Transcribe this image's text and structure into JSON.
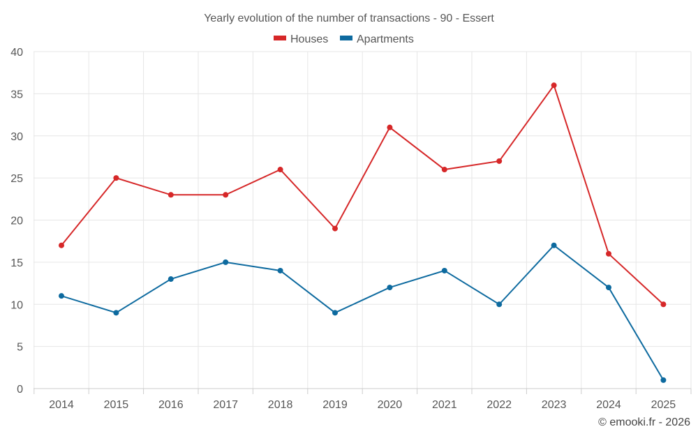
{
  "chart_data": {
    "type": "line",
    "title": "Yearly evolution of the number of transactions - 90 - Essert",
    "categories": [
      "2014",
      "2015",
      "2016",
      "2017",
      "2018",
      "2019",
      "2020",
      "2021",
      "2022",
      "2023",
      "2024",
      "2025"
    ],
    "series": [
      {
        "name": "Houses",
        "color": "#d62728",
        "values": [
          17,
          25,
          23,
          23,
          26,
          19,
          31,
          26,
          27,
          36,
          16,
          10
        ]
      },
      {
        "name": "Apartments",
        "color": "#0d6a9f",
        "values": [
          11,
          9,
          13,
          15,
          14,
          9,
          12,
          14,
          10,
          17,
          12,
          1
        ]
      }
    ],
    "ylim": [
      0,
      40
    ],
    "yticks": [
      "0",
      "5",
      "10",
      "15",
      "20",
      "25",
      "30",
      "35",
      "40"
    ],
    "xlabel": "",
    "ylabel": "",
    "grid": true,
    "legend_position": "top-center"
  },
  "credit": "© emooki.fr - 2026"
}
